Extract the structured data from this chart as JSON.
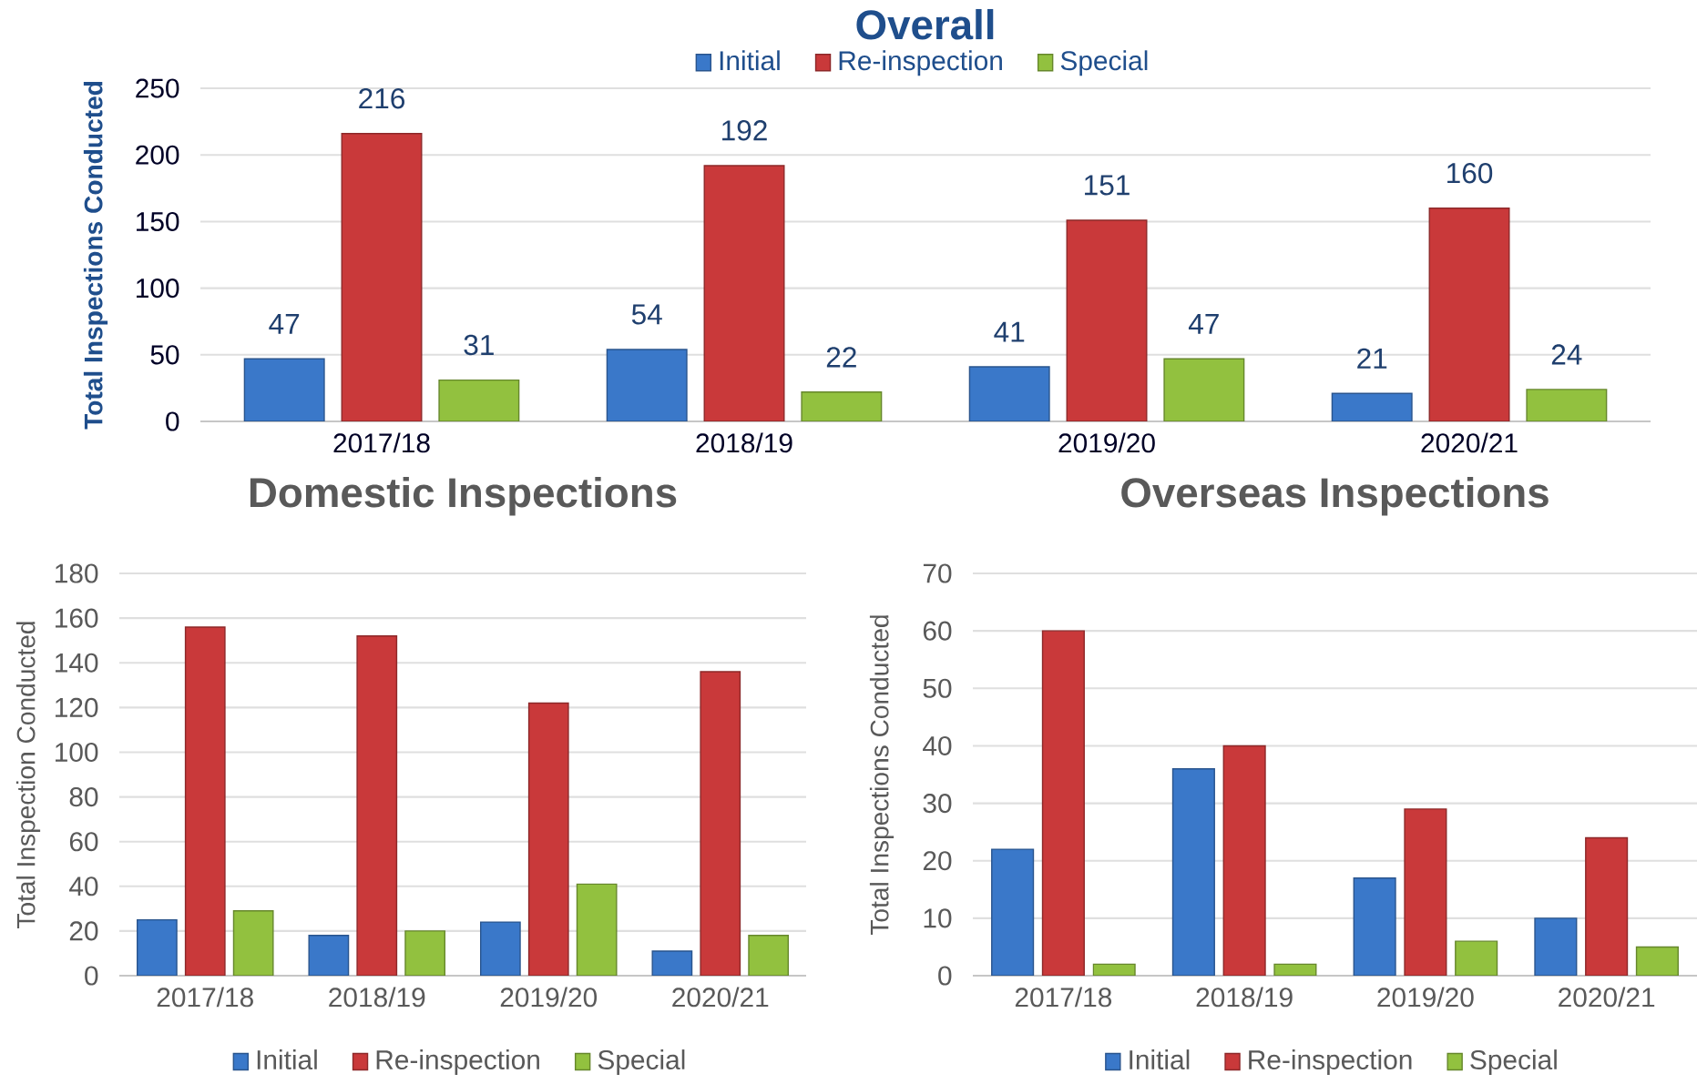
{
  "chart_data": [
    {
      "type": "bar",
      "title": "Overall",
      "ylabel": "Total Inspections Conducted",
      "categories": [
        "2017/18",
        "2018/19",
        "2019/20",
        "2020/21"
      ],
      "series": [
        {
          "name": "Initial",
          "color": "#3a78c9",
          "values": [
            47,
            54,
            41,
            21
          ]
        },
        {
          "name": "Re-inspection",
          "color": "#c9393a",
          "values": [
            216,
            192,
            151,
            160
          ]
        },
        {
          "name": "Special",
          "color": "#92c13f",
          "values": [
            31,
            22,
            47,
            24
          ]
        }
      ],
      "ylim": [
        0,
        250
      ],
      "yticks": [
        0,
        50,
        100,
        150,
        200,
        250
      ],
      "grid": "y",
      "legend": "top",
      "data_labels": true
    },
    {
      "type": "bar",
      "title": "Domestic Inspections",
      "ylabel": "Total Inspection Conducted",
      "categories": [
        "2017/18",
        "2018/19",
        "2019/20",
        "2020/21"
      ],
      "series": [
        {
          "name": "Initial",
          "color": "#3a78c9",
          "values": [
            25,
            18,
            24,
            11
          ]
        },
        {
          "name": "Re-inspection",
          "color": "#c9393a",
          "values": [
            156,
            152,
            122,
            136
          ]
        },
        {
          "name": "Special",
          "color": "#92c13f",
          "values": [
            29,
            20,
            41,
            18
          ]
        }
      ],
      "ylim": [
        0,
        180
      ],
      "yticks": [
        0,
        20,
        40,
        60,
        80,
        100,
        120,
        140,
        160,
        180
      ],
      "grid": "y",
      "legend": "bottom"
    },
    {
      "type": "bar",
      "title": "Overseas Inspections",
      "ylabel": "Total Inspections Conducted",
      "categories": [
        "2017/18",
        "2018/19",
        "2019/20",
        "2020/21"
      ],
      "series": [
        {
          "name": "Initial",
          "color": "#3a78c9",
          "values": [
            22,
            36,
            17,
            10
          ]
        },
        {
          "name": "Re-inspection",
          "color": "#c9393a",
          "values": [
            60,
            40,
            29,
            24
          ]
        },
        {
          "name": "Special",
          "color": "#92c13f",
          "values": [
            2,
            2,
            6,
            5
          ]
        }
      ],
      "ylim": [
        0,
        70
      ],
      "yticks": [
        0,
        10,
        20,
        30,
        40,
        50,
        60,
        70
      ],
      "grid": "y",
      "legend": "bottom"
    }
  ]
}
